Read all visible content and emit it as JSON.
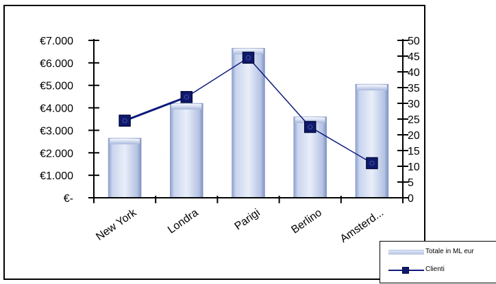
{
  "chart_data": {
    "type": "bar",
    "categories": [
      "New York",
      "Londra",
      "Parigi",
      "Berlino",
      "Amsterd..."
    ],
    "series": [
      {
        "name": "Totale in ML euro",
        "type": "bar",
        "axis": "left",
        "values": [
          2650,
          4200,
          6650,
          3600,
          5050
        ]
      },
      {
        "name": "Clienti",
        "type": "line",
        "axis": "right",
        "values": [
          24.5,
          32,
          44.5,
          22.5,
          11
        ]
      }
    ],
    "y_left": {
      "ylim": [
        0,
        7000
      ],
      "ticks": [
        0,
        1000,
        2000,
        3000,
        4000,
        5000,
        6000,
        7000
      ],
      "tick_labels": [
        "€-",
        "€1.000",
        "€2.000",
        "€3.000",
        "€4.000",
        "€5.000",
        "€6.000",
        "€7.000"
      ]
    },
    "y_right": {
      "ylim": [
        0,
        50
      ],
      "ticks": [
        0,
        5,
        10,
        15,
        20,
        25,
        30,
        35,
        40,
        45,
        50
      ],
      "tick_labels": [
        "0",
        "5",
        "10",
        "15",
        "20",
        "25",
        "30",
        "35",
        "40",
        "45",
        "50"
      ]
    },
    "legend": {
      "placement": "bottom-right",
      "entries": [
        "Totale in ML euro",
        "Clienti"
      ],
      "visible_labels": [
        "Totale in ML eur",
        "Clienti"
      ]
    },
    "colors": {
      "bar_light": "#e8eefa",
      "bar_mid": "#b2c1e3",
      "bar_dark": "#7f93c4",
      "line": "#0d1a7a",
      "marker": "#0f1a6e",
      "axis": "#000000"
    },
    "title": "",
    "xlabel": "",
    "ylabel": "",
    "grid": false
  }
}
